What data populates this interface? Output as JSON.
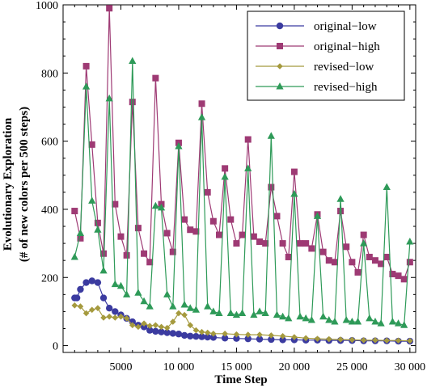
{
  "chart_data": {
    "type": "line",
    "xlabel": "Time Step",
    "ylabel": [
      "Evolutionary Exploration",
      "(# of new colors per 500 steps)"
    ],
    "xlim": [
      0,
      30500
    ],
    "ylim": [
      -20,
      1000
    ],
    "xticks": [
      5000,
      10000,
      15000,
      20000,
      25000,
      30000
    ],
    "xtick_labels": [
      "5000",
      "10 000",
      "15 000",
      "20 000",
      "25 000",
      "30 000"
    ],
    "yticks": [
      0,
      200,
      400,
      600,
      800,
      1000
    ],
    "ytick_labels": [
      "0",
      "200",
      "400",
      "600",
      "800",
      "1000"
    ],
    "grid": false,
    "legend_position": "top-right",
    "series": [
      {
        "name": "original−low",
        "color": "#3b3ba0",
        "marker": "circle",
        "points": [
          [
            1000,
            140
          ],
          [
            1200,
            140
          ],
          [
            1500,
            165
          ],
          [
            2000,
            185
          ],
          [
            2500,
            190
          ],
          [
            3000,
            185
          ],
          [
            3500,
            140
          ],
          [
            4000,
            110
          ],
          [
            4500,
            100
          ],
          [
            5000,
            90
          ],
          [
            5500,
            80
          ],
          [
            6000,
            70
          ],
          [
            6500,
            60
          ],
          [
            7000,
            55
          ],
          [
            7500,
            45
          ],
          [
            8000,
            42
          ],
          [
            8500,
            40
          ],
          [
            9000,
            38
          ],
          [
            9500,
            36
          ],
          [
            10000,
            34
          ],
          [
            10500,
            30
          ],
          [
            11000,
            28
          ],
          [
            11500,
            27
          ],
          [
            12000,
            26
          ],
          [
            12500,
            25
          ],
          [
            13000,
            24
          ],
          [
            14000,
            22
          ],
          [
            15000,
            21
          ],
          [
            16000,
            20
          ],
          [
            17000,
            19
          ],
          [
            18000,
            18
          ],
          [
            19000,
            17
          ],
          [
            20000,
            17
          ],
          [
            21000,
            16
          ],
          [
            22000,
            16
          ],
          [
            23000,
            15
          ],
          [
            24000,
            15
          ],
          [
            25000,
            15
          ],
          [
            26000,
            14
          ],
          [
            27000,
            14
          ],
          [
            28000,
            14
          ],
          [
            29000,
            13
          ],
          [
            30000,
            13
          ]
        ]
      },
      {
        "name": "original−high",
        "color": "#9e3a74",
        "marker": "square",
        "points": [
          [
            1000,
            395
          ],
          [
            1500,
            315
          ],
          [
            2000,
            820
          ],
          [
            2500,
            590
          ],
          [
            3000,
            360
          ],
          [
            3500,
            270
          ],
          [
            4000,
            990
          ],
          [
            4500,
            415
          ],
          [
            5000,
            320
          ],
          [
            5500,
            265
          ],
          [
            6000,
            715
          ],
          [
            6500,
            345
          ],
          [
            7000,
            270
          ],
          [
            7500,
            245
          ],
          [
            8000,
            785
          ],
          [
            8500,
            415
          ],
          [
            9000,
            330
          ],
          [
            9500,
            275
          ],
          [
            10000,
            595
          ],
          [
            10500,
            370
          ],
          [
            11000,
            340
          ],
          [
            11500,
            335
          ],
          [
            12000,
            710
          ],
          [
            12500,
            450
          ],
          [
            13000,
            365
          ],
          [
            13500,
            325
          ],
          [
            14000,
            520
          ],
          [
            14500,
            370
          ],
          [
            15000,
            300
          ],
          [
            15500,
            325
          ],
          [
            16000,
            605
          ],
          [
            16500,
            320
          ],
          [
            17000,
            305
          ],
          [
            17500,
            300
          ],
          [
            18000,
            465
          ],
          [
            18500,
            380
          ],
          [
            19000,
            300
          ],
          [
            19500,
            260
          ],
          [
            20000,
            510
          ],
          [
            20500,
            300
          ],
          [
            21000,
            300
          ],
          [
            21500,
            285
          ],
          [
            22000,
            385
          ],
          [
            22500,
            275
          ],
          [
            23000,
            250
          ],
          [
            23500,
            245
          ],
          [
            24000,
            395
          ],
          [
            24500,
            290
          ],
          [
            25000,
            245
          ],
          [
            25500,
            215
          ],
          [
            26000,
            325
          ],
          [
            26500,
            260
          ],
          [
            27000,
            250
          ],
          [
            27500,
            240
          ],
          [
            28000,
            260
          ],
          [
            28500,
            210
          ],
          [
            29000,
            205
          ],
          [
            29500,
            195
          ],
          [
            30000,
            245
          ]
        ]
      },
      {
        "name": "revised−low",
        "color": "#a59a3e",
        "marker": "diamond",
        "points": [
          [
            1000,
            118
          ],
          [
            1500,
            115
          ],
          [
            2000,
            95
          ],
          [
            2500,
            105
          ],
          [
            3000,
            110
          ],
          [
            3500,
            82
          ],
          [
            4000,
            85
          ],
          [
            4500,
            82
          ],
          [
            5000,
            85
          ],
          [
            5500,
            80
          ],
          [
            6000,
            60
          ],
          [
            6500,
            55
          ],
          [
            7000,
            65
          ],
          [
            7500,
            58
          ],
          [
            8000,
            60
          ],
          [
            8500,
            55
          ],
          [
            9000,
            52
          ],
          [
            9500,
            70
          ],
          [
            10000,
            95
          ],
          [
            10500,
            90
          ],
          [
            11000,
            60
          ],
          [
            11500,
            45
          ],
          [
            12000,
            40
          ],
          [
            12500,
            38
          ],
          [
            13000,
            35
          ],
          [
            14000,
            35
          ],
          [
            15000,
            33
          ],
          [
            16000,
            32
          ],
          [
            17000,
            32
          ],
          [
            18000,
            30
          ],
          [
            19000,
            28
          ],
          [
            20000,
            25
          ],
          [
            21000,
            22
          ],
          [
            22000,
            20
          ],
          [
            23000,
            19
          ],
          [
            24000,
            18
          ],
          [
            25000,
            17
          ],
          [
            26000,
            16
          ],
          [
            27000,
            16
          ],
          [
            28000,
            15
          ],
          [
            29000,
            15
          ],
          [
            30000,
            14
          ]
        ]
      },
      {
        "name": "revised−high",
        "color": "#2e9a58",
        "marker": "triangle",
        "points": [
          [
            1000,
            260
          ],
          [
            1500,
            330
          ],
          [
            2000,
            760
          ],
          [
            2500,
            425
          ],
          [
            3000,
            340
          ],
          [
            3500,
            220
          ],
          [
            4000,
            725
          ],
          [
            4500,
            180
          ],
          [
            5000,
            175
          ],
          [
            5500,
            150
          ],
          [
            6000,
            835
          ],
          [
            6500,
            155
          ],
          [
            7000,
            130
          ],
          [
            7500,
            115
          ],
          [
            8000,
            410
          ],
          [
            8500,
            405
          ],
          [
            9000,
            150
          ],
          [
            9500,
            115
          ],
          [
            10000,
            585
          ],
          [
            10500,
            120
          ],
          [
            11000,
            110
          ],
          [
            11500,
            105
          ],
          [
            12000,
            670
          ],
          [
            12500,
            115
          ],
          [
            13000,
            100
          ],
          [
            13500,
            95
          ],
          [
            14000,
            495
          ],
          [
            14500,
            95
          ],
          [
            15000,
            90
          ],
          [
            15500,
            95
          ],
          [
            16000,
            520
          ],
          [
            16500,
            90
          ],
          [
            17000,
            100
          ],
          [
            17500,
            95
          ],
          [
            18000,
            615
          ],
          [
            18500,
            90
          ],
          [
            19000,
            85
          ],
          [
            19500,
            80
          ],
          [
            20000,
            445
          ],
          [
            20500,
            85
          ],
          [
            21000,
            80
          ],
          [
            21500,
            75
          ],
          [
            22000,
            380
          ],
          [
            22500,
            85
          ],
          [
            23000,
            75
          ],
          [
            23500,
            70
          ],
          [
            24000,
            430
          ],
          [
            24500,
            75
          ],
          [
            25000,
            70
          ],
          [
            25500,
            70
          ],
          [
            26000,
            300
          ],
          [
            26500,
            80
          ],
          [
            27000,
            70
          ],
          [
            27500,
            65
          ],
          [
            28000,
            465
          ],
          [
            28500,
            70
          ],
          [
            29000,
            65
          ],
          [
            29500,
            60
          ],
          [
            30000,
            305
          ]
        ]
      }
    ]
  }
}
